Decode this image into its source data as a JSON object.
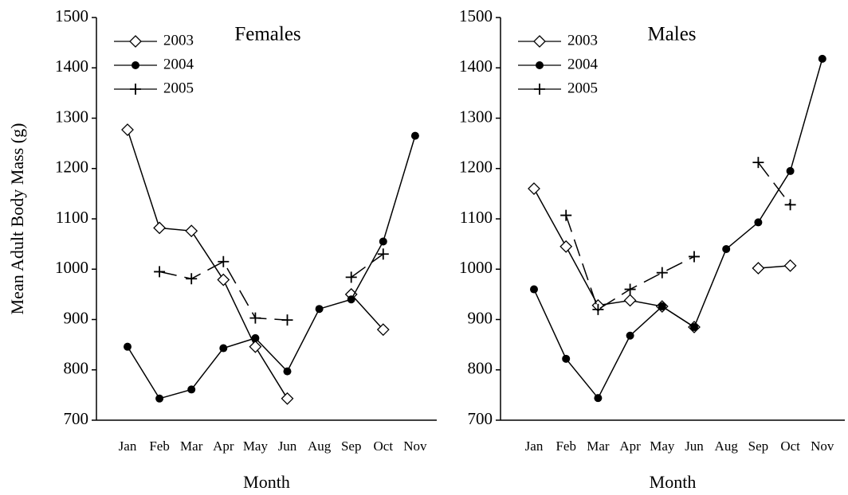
{
  "chart_data": [
    {
      "type": "line",
      "title": "Females",
      "ylabel": "Mean Adult Body Mass (g)",
      "xlabel": "Month",
      "categories": [
        "Jan",
        "Feb",
        "Mar",
        "Apr",
        "May",
        "Jun",
        "Aug",
        "Sep",
        "Oct",
        "Nov"
      ],
      "ylim": [
        700,
        1500
      ],
      "yticks": [
        700,
        800,
        900,
        1000,
        1100,
        1200,
        1300,
        1400,
        1500
      ],
      "series": [
        {
          "name": "2003",
          "color": "#000000",
          "marker": "diamond",
          "dash": "solid",
          "values": [
            1277,
            1082,
            1076,
            979,
            846,
            743,
            null,
            950,
            880,
            null
          ]
        },
        {
          "name": "2004",
          "color": "#000000",
          "marker": "circle",
          "dash": "solid",
          "values": [
            846,
            743,
            761,
            843,
            863,
            797,
            921,
            940,
            1055,
            1265
          ]
        },
        {
          "name": "2005",
          "color": "#000000",
          "marker": "plus",
          "dash": "dashed",
          "values": [
            null,
            995,
            981,
            1015,
            903,
            899,
            null,
            984,
            1030,
            null
          ]
        }
      ]
    },
    {
      "type": "line",
      "title": "Males",
      "xlabel": "Month",
      "categories": [
        "Jan",
        "Feb",
        "Mar",
        "Apr",
        "May",
        "Jun",
        "Aug",
        "Sep",
        "Oct",
        "Nov"
      ],
      "ylim": [
        700,
        1500
      ],
      "yticks": [
        700,
        800,
        900,
        1000,
        1100,
        1200,
        1300,
        1400,
        1500
      ],
      "series": [
        {
          "name": "2003",
          "color": "#000000",
          "marker": "diamond",
          "dash": "solid",
          "values": [
            1160,
            1045,
            928,
            938,
            926,
            885,
            null,
            1002,
            1007,
            null
          ]
        },
        {
          "name": "2004",
          "color": "#000000",
          "marker": "circle",
          "dash": "solid",
          "values": [
            960,
            822,
            744,
            868,
            926,
            885,
            1040,
            1093,
            1195,
            1418
          ]
        },
        {
          "name": "2005",
          "color": "#000000",
          "marker": "plus",
          "dash": "dashed",
          "values": [
            null,
            1107,
            920,
            960,
            993,
            1025,
            null,
            1212,
            1128,
            null
          ]
        }
      ]
    }
  ]
}
